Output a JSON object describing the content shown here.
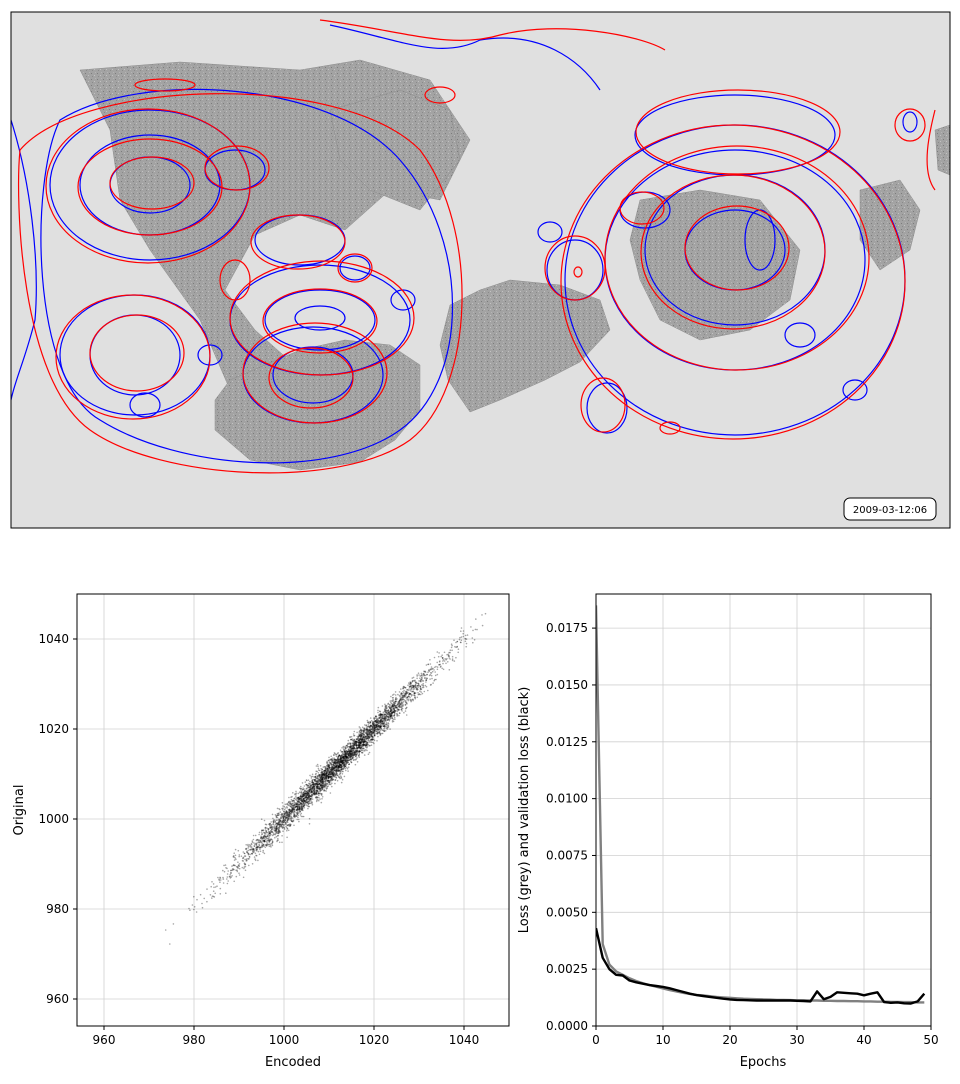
{
  "map_panel": {
    "timestamp": "2009-03-12:06",
    "colors": {
      "background": "#e0e0e0",
      "land": "#9a9a9a",
      "original_contours": "#ff0000",
      "encoded_contours": "#0000ff"
    }
  },
  "chart_data": [
    {
      "type": "scatter",
      "title": "",
      "xlabel": "Encoded",
      "ylabel": "Original",
      "xlim": [
        954,
        1050
      ],
      "ylim": [
        954,
        1050
      ],
      "xticks": [
        "960",
        "980",
        "1000",
        "1020",
        "1040"
      ],
      "yticks": [
        "960",
        "980",
        "1000",
        "1020",
        "1040"
      ],
      "grid": true,
      "marker_color": "#000000",
      "points_summary": {
        "relation": "Original ≈ Encoded",
        "x_range": [
          961,
          1046
        ],
        "density_peak": 1012,
        "point_count_approx": 4000
      }
    },
    {
      "type": "line",
      "title": "",
      "xlabel": "Epochs",
      "ylabel": "Loss (grey) and validation loss (black)",
      "xlim": [
        0,
        50
      ],
      "ylim": [
        0,
        0.019
      ],
      "xticks": [
        "0",
        "10",
        "20",
        "30",
        "40",
        "50"
      ],
      "yticks": [
        "0.0000",
        "0.0025",
        "0.0050",
        "0.0075",
        "0.0100",
        "0.0125",
        "0.0150",
        "0.0175"
      ],
      "grid": true,
      "series": [
        {
          "color": "#808080",
          "x": [
            0,
            1,
            2,
            3,
            4,
            5,
            6,
            7,
            8,
            9,
            10,
            11,
            12,
            13,
            14,
            15,
            16,
            17,
            18,
            19,
            20,
            21,
            22,
            23,
            24,
            25,
            26,
            27,
            28,
            29,
            30,
            31,
            32,
            33,
            34,
            35,
            36,
            37,
            38,
            39,
            40,
            41,
            42,
            43,
            44,
            45,
            46,
            47,
            48,
            49
          ],
          "values": [
            0.0185,
            0.0036,
            0.0027,
            0.0024,
            0.00225,
            0.0021,
            0.00198,
            0.00188,
            0.0018,
            0.00173,
            0.00165,
            0.00158,
            0.00152,
            0.00146,
            0.00141,
            0.00137,
            0.00134,
            0.00131,
            0.00128,
            0.00126,
            0.00124,
            0.00122,
            0.0012,
            0.00119,
            0.00118,
            0.00117,
            0.00116,
            0.00115,
            0.00115,
            0.00114,
            0.00113,
            0.00113,
            0.00112,
            0.00112,
            0.00111,
            0.00111,
            0.0011,
            0.0011,
            0.00109,
            0.00109,
            0.00108,
            0.00108,
            0.00107,
            0.00107,
            0.00106,
            0.00106,
            0.00105,
            0.00105,
            0.00104,
            0.00104
          ]
        },
        {
          "color": "#000000",
          "x": [
            0,
            1,
            2,
            3,
            4,
            5,
            6,
            7,
            8,
            9,
            10,
            11,
            12,
            13,
            14,
            15,
            16,
            17,
            18,
            19,
            20,
            21,
            22,
            23,
            24,
            25,
            26,
            27,
            28,
            29,
            30,
            31,
            32,
            33,
            34,
            35,
            36,
            37,
            38,
            39,
            40,
            41,
            42,
            43,
            44,
            45,
            46,
            47,
            48,
            49
          ],
          "values": [
            0.0043,
            0.003,
            0.0025,
            0.00225,
            0.00222,
            0.002,
            0.00192,
            0.00186,
            0.0018,
            0.00176,
            0.00172,
            0.00166,
            0.00158,
            0.0015,
            0.00142,
            0.00136,
            0.00132,
            0.00128,
            0.00124,
            0.0012,
            0.00117,
            0.00115,
            0.00114,
            0.00113,
            0.00112,
            0.00112,
            0.00112,
            0.00112,
            0.00112,
            0.00112,
            0.00111,
            0.0011,
            0.00108,
            0.00152,
            0.00118,
            0.00128,
            0.00148,
            0.00146,
            0.00144,
            0.00142,
            0.00135,
            0.00142,
            0.00148,
            0.00105,
            0.00102,
            0.00104,
            0.001,
            0.00099,
            0.00108,
            0.00142
          ]
        }
      ]
    }
  ]
}
